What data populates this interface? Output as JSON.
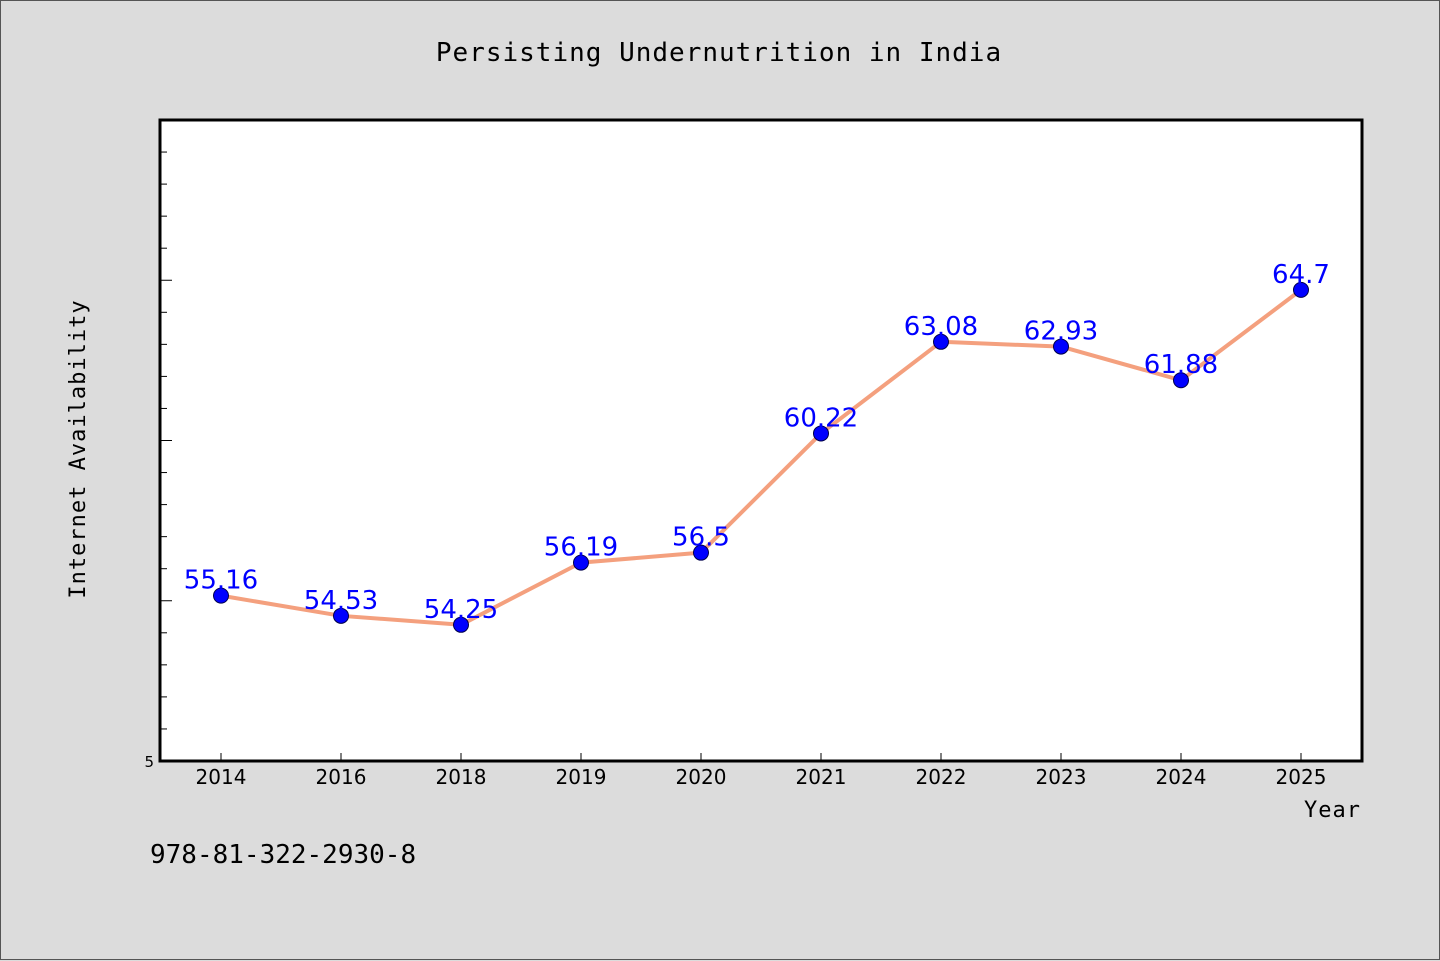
{
  "chart_data": {
    "type": "line",
    "title": "Persisting Undernutrition in India",
    "xlabel": "Year",
    "ylabel": "Internet Availability",
    "categories": [
      "2014",
      "2016",
      "2018",
      "2019",
      "2020",
      "2021",
      "2022",
      "2023",
      "2024",
      "2025"
    ],
    "series": [
      {
        "values": [
          55.16,
          54.53,
          54.25,
          56.19,
          56.5,
          60.22,
          63.08,
          62.93,
          61.88,
          64.7
        ],
        "data_labels": [
          "55.16",
          "54.53",
          "54.25",
          "56.19",
          "56.5",
          "60.22",
          "63.08",
          "62.93",
          "61.88",
          "64.7"
        ],
        "line_color": "#f4a07e",
        "marker_color": "#0000ff"
      }
    ],
    "ylim": [
      50,
      70
    ],
    "y_tick_label": "5",
    "grid": false,
    "legend": "none"
  },
  "footer_text": "978-81-322-2930-8"
}
